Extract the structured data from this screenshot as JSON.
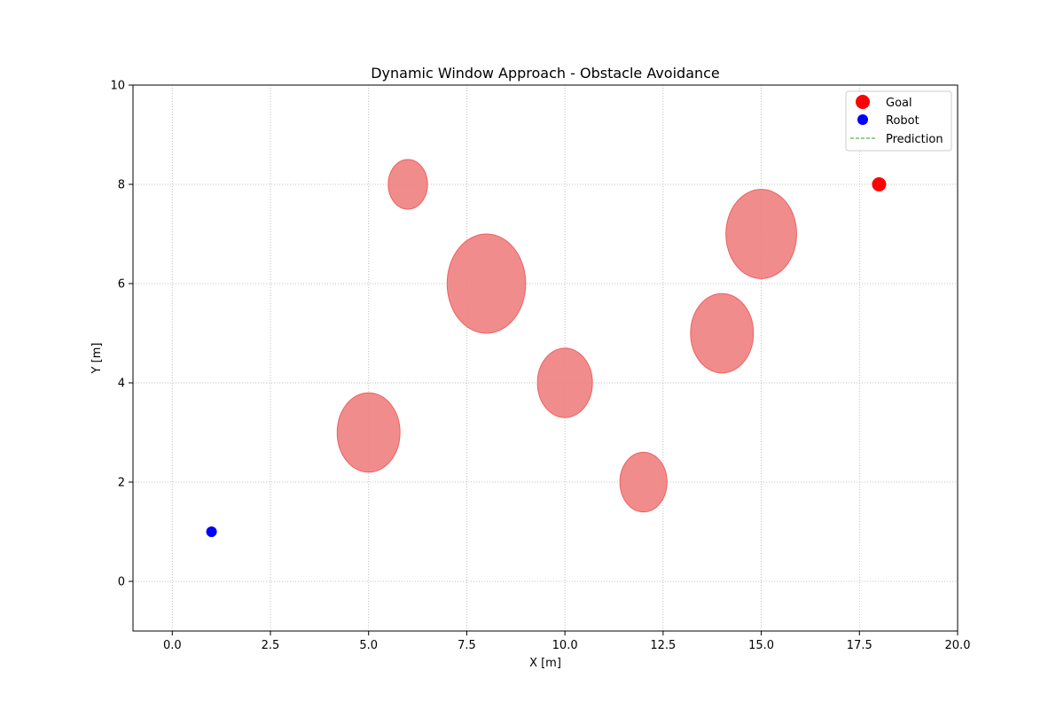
{
  "chart_data": {
    "type": "scatter",
    "title": "Dynamic Window Approach - Obstacle Avoidance",
    "xlabel": "X [m]",
    "ylabel": "Y [m]",
    "xlim": [
      -1,
      20
    ],
    "ylim": [
      -1,
      10
    ],
    "xticks": [
      0.0,
      2.5,
      5.0,
      7.5,
      10.0,
      12.5,
      15.0,
      17.5,
      20.0
    ],
    "xtick_labels": [
      "0.0",
      "2.5",
      "5.0",
      "7.5",
      "10.0",
      "12.5",
      "15.0",
      "17.5",
      "20.0"
    ],
    "yticks": [
      0,
      2,
      4,
      6,
      8,
      10
    ],
    "ytick_labels": [
      "0",
      "2",
      "4",
      "6",
      "8",
      "10"
    ],
    "grid": true,
    "legend_position": "top-right",
    "goal": {
      "label": "Goal",
      "x": 18,
      "y": 8,
      "color": "#ff0000"
    },
    "robot": {
      "label": "Robot",
      "x": 1,
      "y": 1,
      "color": "#0000ff"
    },
    "prediction": {
      "label": "Prediction",
      "color": "#2ca02c",
      "x": [],
      "y": []
    },
    "obstacles": [
      {
        "x": 6,
        "y": 8,
        "r": 0.5
      },
      {
        "x": 8,
        "y": 6,
        "r": 1.0
      },
      {
        "x": 15,
        "y": 7,
        "r": 0.9
      },
      {
        "x": 14,
        "y": 5,
        "r": 0.8
      },
      {
        "x": 10,
        "y": 4,
        "r": 0.7
      },
      {
        "x": 5,
        "y": 3,
        "r": 0.8
      },
      {
        "x": 12,
        "y": 2,
        "r": 0.6
      }
    ],
    "obstacle_color": "#f08080"
  }
}
